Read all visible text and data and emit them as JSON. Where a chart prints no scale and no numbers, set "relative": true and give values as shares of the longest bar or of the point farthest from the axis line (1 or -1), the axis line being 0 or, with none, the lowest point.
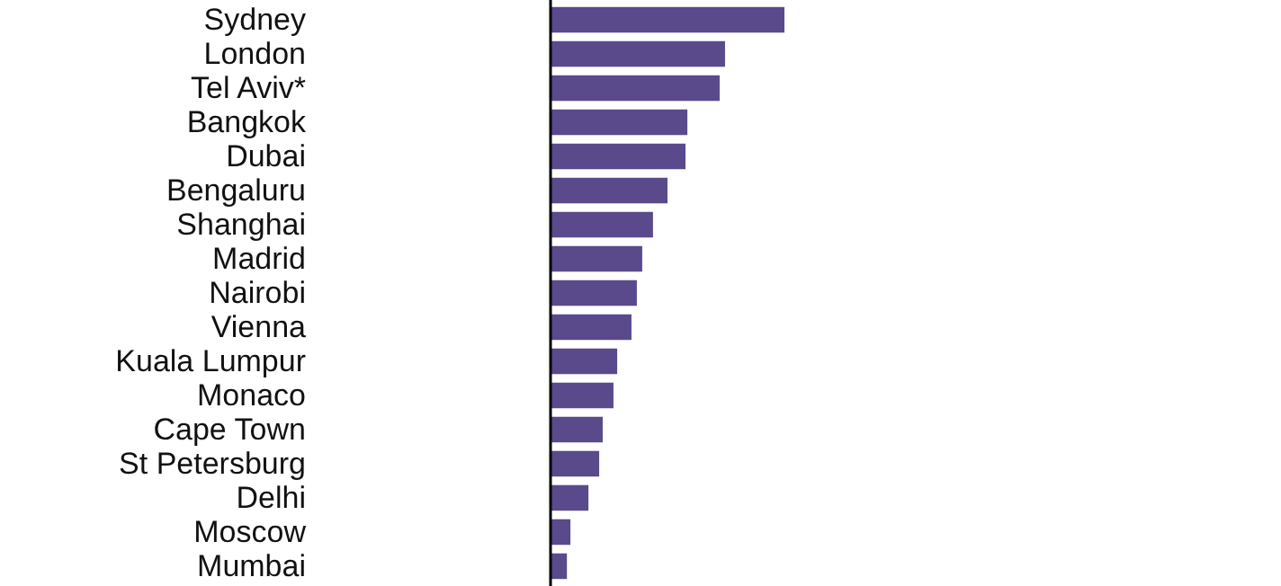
{
  "chart_data": {
    "type": "bar",
    "orientation": "horizontal",
    "relative": true,
    "color": "#5a4a8c",
    "categories": [
      "Sydney",
      "London",
      "Tel Aviv*",
      "Bangkok",
      "Dubai",
      "Bengaluru",
      "Shanghai",
      "Madrid",
      "Nairobi",
      "Vienna",
      "Kuala Lumpur",
      "Monaco",
      "Cape Town",
      "St Petersburg",
      "Delhi",
      "Moscow",
      "Mumbai"
    ],
    "values": [
      1,
      0.746,
      0.723,
      0.585,
      0.577,
      0.5,
      0.438,
      0.392,
      0.369,
      0.346,
      0.285,
      0.269,
      0.223,
      0.208,
      0.162,
      0.085,
      0.07
    ]
  }
}
